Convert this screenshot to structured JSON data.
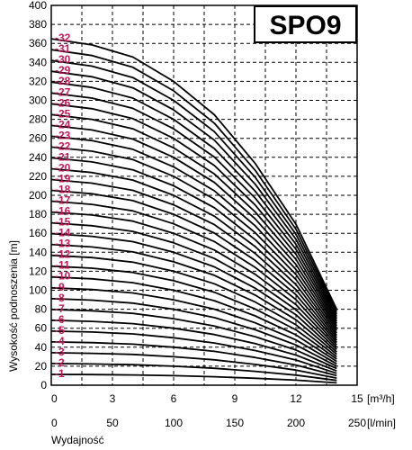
{
  "chart_data": {
    "type": "line",
    "title": "SPO9",
    "ylabel": "Wysokość podnoszenia [m]",
    "xlabel": "Wydajność",
    "x_primary": {
      "unit": "[m³/h]",
      "ticks": [
        "0",
        "3",
        "6",
        "9",
        "12",
        "15"
      ],
      "range": [
        0,
        15
      ]
    },
    "x_secondary": {
      "unit": "[l/min]",
      "ticks": [
        "0",
        "50",
        "100",
        "150",
        "200",
        "250"
      ],
      "range": [
        0,
        250
      ]
    },
    "y_ticks": [
      "0",
      "20",
      "40",
      "60",
      "80",
      "100",
      "120",
      "140",
      "160",
      "180",
      "200",
      "220",
      "240",
      "260",
      "280",
      "300",
      "320",
      "340",
      "360",
      "380",
      "400"
    ],
    "ylim": [
      0,
      400
    ],
    "grid": true,
    "series_note": "Q-H curves for 1..32 stages; head per stage at zero flow ≈ 11.4 m, curves end at ~14 m³/h",
    "stage_labels": [
      "1",
      "2",
      "3",
      "4",
      "5",
      "6",
      "7",
      "8",
      "9",
      "10",
      "11",
      "12",
      "13",
      "14",
      "15",
      "16",
      "17",
      "18",
      "19",
      "20",
      "21",
      "22",
      "23",
      "24",
      "25",
      "26",
      "27",
      "28",
      "29",
      "30",
      "31",
      "32"
    ],
    "curve_shape": {
      "q_m3h": [
        0,
        2,
        4,
        6,
        8,
        10,
        12,
        14
      ],
      "head_per_stage_m": [
        11.4,
        11.2,
        10.8,
        10.0,
        8.9,
        7.3,
        5.3,
        2.5
      ]
    },
    "colors": {
      "curve": "#000000",
      "stage_label": "#c2185b",
      "grid": "#000000"
    }
  }
}
